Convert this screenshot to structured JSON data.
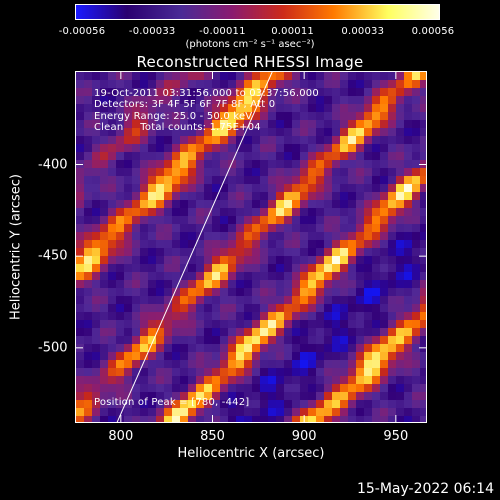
{
  "colorbar": {
    "ticks": [
      "-0.00056",
      "-0.00033",
      "-0.00011",
      "0.00011",
      "0.00033",
      "0.00056"
    ],
    "units": "(photons cm⁻² s⁻¹ asec⁻²)",
    "colors": [
      "#1a1aff",
      "#2a0070",
      "#4a2a96",
      "#8a1a70",
      "#cc2a1a",
      "#ff7a00",
      "#ffff60",
      "#ffffe8"
    ]
  },
  "info": {
    "time_range": "19-Oct-2011 03:31:56.000 to 03:37:56.000",
    "detectors": "Detectors: 3F 4F 5F 6F 7F 8F, Att 0",
    "energy_range": "Energy Range: 25.0 - 50.0 keV",
    "clean_line": "Clean     Total counts: 1.75E+04",
    "peak": "Position of Peak = [780, -442]"
  },
  "footer": {
    "date": "15-May-2022 06:14"
  },
  "chart_data": {
    "type": "heatmap",
    "title": "Reconstructed RHESSI Image",
    "xlabel": "Heliocentric X (arcsec)",
    "ylabel": "Heliocentric Y (arcsec)",
    "xlim": [
      775,
      967
    ],
    "ylim": [
      -541,
      -349
    ],
    "xticks": [
      "800",
      "850",
      "900",
      "950"
    ],
    "yticks": [
      "-400",
      "-450",
      "-500"
    ],
    "xtick_values": [
      800,
      850,
      900,
      950
    ],
    "ytick_values": [
      -400,
      -450,
      -500
    ],
    "limb_line": [
      [
        797,
        -541
      ],
      [
        882,
        -349
      ]
    ],
    "zrange": [
      -0.00056,
      0.00056
    ]
  }
}
